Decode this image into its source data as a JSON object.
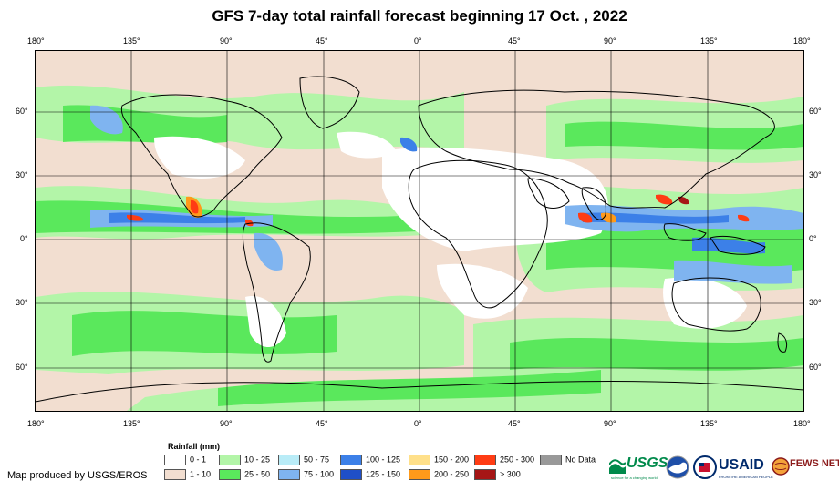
{
  "title": "GFS 7-day total rainfall forecast beginning 17 Oct. , 2022",
  "top_ticks": [
    "180°",
    "135°",
    "90°",
    "45°",
    "0°",
    "45°",
    "90°",
    "135°",
    "180°"
  ],
  "bottom_ticks": [
    "180°",
    "135°",
    "90°",
    "45°",
    "0°",
    "45°",
    "90°",
    "135°",
    "180°"
  ],
  "left_ticks": [
    "60°",
    "30°",
    "0°",
    "30°",
    "60°"
  ],
  "right_ticks": [
    "60°",
    "30°",
    "0°",
    "30°",
    "60°"
  ],
  "legend": {
    "title": "Rainfall (mm)",
    "items": [
      {
        "label": "0 - 1",
        "color": "#ffffff"
      },
      {
        "label": "1 - 10",
        "color": "#f2ded0"
      },
      {
        "label": "10 - 25",
        "color": "#b3f5a8"
      },
      {
        "label": "25 - 50",
        "color": "#5ae85c"
      },
      {
        "label": "50 - 75",
        "color": "#b9ecf7"
      },
      {
        "label": "75 - 100",
        "color": "#7fb4f0"
      },
      {
        "label": "100 - 125",
        "color": "#3c80e8"
      },
      {
        "label": "125 - 150",
        "color": "#1f4fc7"
      },
      {
        "label": "150 - 200",
        "color": "#ffe08a"
      },
      {
        "label": "200 - 250",
        "color": "#ff9a1a"
      },
      {
        "label": "250 - 300",
        "color": "#ff3c14"
      },
      {
        "label": "> 300",
        "color": "#a61616"
      },
      {
        "label": "No Data",
        "color": "#999999"
      }
    ]
  },
  "credit": "Map produced by USGS/EROS",
  "logos": {
    "usgs": "USGS",
    "usgs_tagline": "science for a changing world",
    "usaid": "USAID",
    "usaid_tagline": "FROM THE AMERICAN PEOPLE",
    "fewsnet": "FEWS NET"
  }
}
